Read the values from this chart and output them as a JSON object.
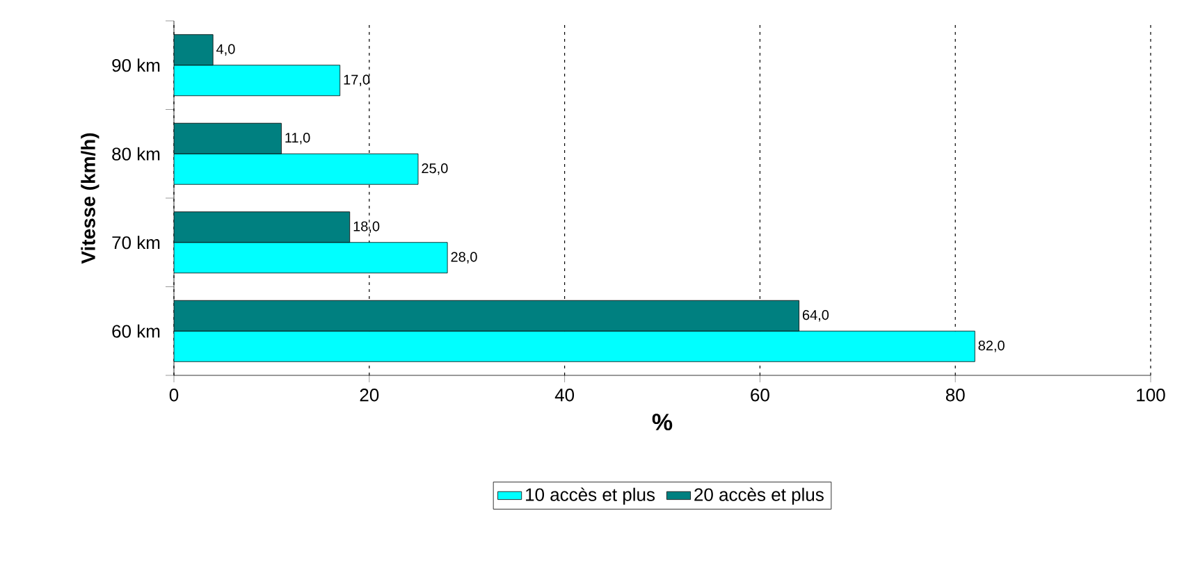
{
  "chart_data": {
    "type": "bar",
    "orientation": "horizontal",
    "xlabel": "%",
    "ylabel": "Vitesse (km/h)",
    "categories": [
      "90 km",
      "80 km",
      "70 km",
      "60 km"
    ],
    "series": [
      {
        "name": "10 accès et plus",
        "color": "#00ffff",
        "values": [
          17,
          25,
          28,
          82
        ],
        "value_labels": [
          "17,0",
          "25,0",
          "28,0",
          "82,0"
        ]
      },
      {
        "name": "20 accès et plus",
        "color": "#008080",
        "values": [
          4,
          11,
          18,
          64
        ],
        "value_labels": [
          "4,0",
          "11,0",
          "18,0",
          "64,0"
        ]
      }
    ],
    "xlim": [
      0,
      100
    ],
    "xticks": [
      0,
      20,
      40,
      60,
      80,
      100
    ],
    "grid": "x",
    "legend": "bottom"
  }
}
